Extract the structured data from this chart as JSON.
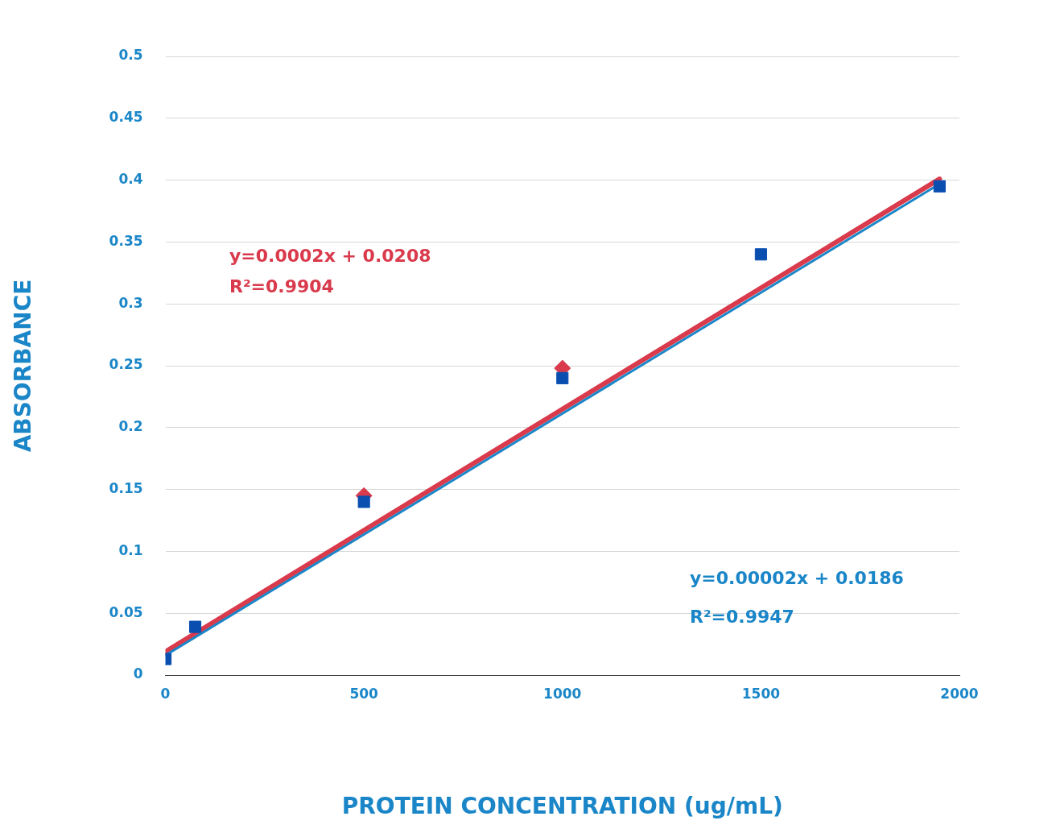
{
  "chart_data": {
    "type": "scatter",
    "xlabel": "PROTEIN CONCENTRATION (ug/mL)",
    "ylabel": "ABSORBANCE",
    "xlim": [
      0,
      2000
    ],
    "xticks": [
      0,
      500,
      1000,
      1500,
      2000
    ],
    "ylim": [
      0,
      0.5
    ],
    "yticks": [
      0,
      0.05,
      0.1,
      0.15,
      0.2,
      0.25,
      0.3,
      0.35,
      0.4,
      0.45,
      0.5
    ],
    "grid": "y",
    "series": [
      {
        "marker": "square",
        "color": "#0a4fb0",
        "x": [
          0,
          75,
          500,
          1000,
          1500,
          1950
        ],
        "values": [
          0.013,
          0.039,
          0.14,
          0.24,
          0.34,
          0.395
        ]
      },
      {
        "marker": "diamond",
        "color": "#d93a4c",
        "x": [
          500,
          1000
        ],
        "values": [
          0.145,
          0.248
        ]
      },
      {
        "type": "line",
        "color": "#1a86c8",
        "x": [
          0,
          1950
        ],
        "values": [
          0.016,
          0.397
        ]
      },
      {
        "type": "line",
        "color": "#d93a4c",
        "x": [
          0,
          1950
        ],
        "values": [
          0.019,
          0.401
        ]
      }
    ],
    "annotations": [
      "y=0.0002x + 0.0208",
      "R²=0.9904",
      "y=0.00002x + 0.0186",
      "R²=0.9947"
    ]
  }
}
